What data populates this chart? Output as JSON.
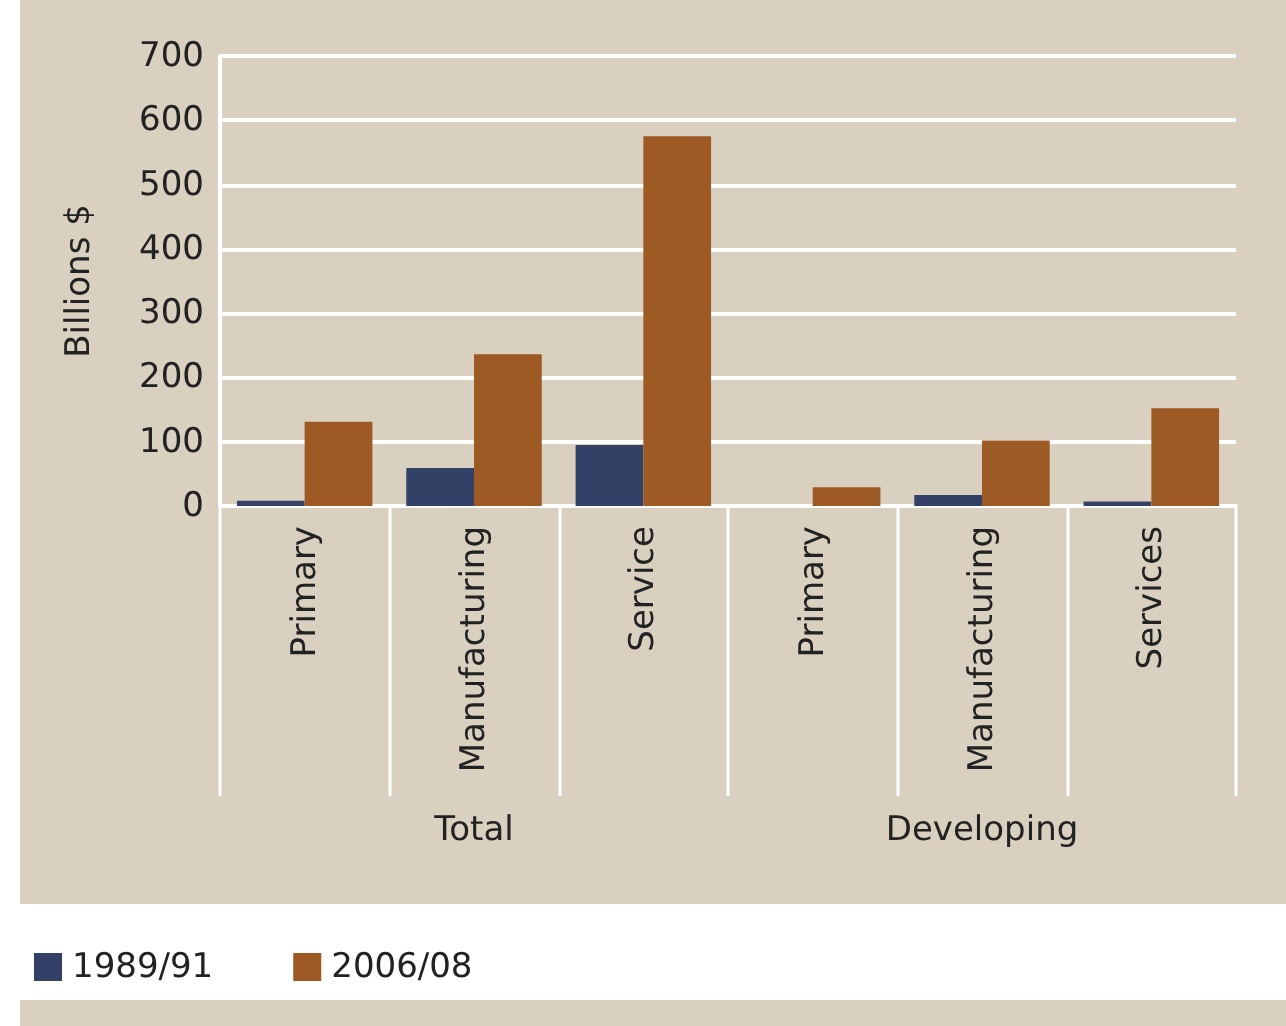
{
  "chart_data": {
    "type": "bar",
    "ylabel": "Billions $",
    "categories": [
      "Primary",
      "Manufacturing",
      "Service",
      "Primary",
      "Manufacturing",
      "Services"
    ],
    "series": [
      {
        "name": "1989/91",
        "color": "#344166",
        "values": [
          8,
          59,
          95,
          0,
          17,
          7
        ]
      },
      {
        "name": "2006/08",
        "color": "#9e5a24",
        "values": [
          131,
          236,
          575,
          29,
          102,
          152
        ]
      }
    ],
    "ylim": [
      0,
      700
    ],
    "yticks": [
      0,
      100,
      200,
      300,
      400,
      500,
      600,
      700
    ],
    "grid": "y",
    "legend": "bottom left",
    "annotations": [
      "Total",
      "Developing"
    ]
  }
}
